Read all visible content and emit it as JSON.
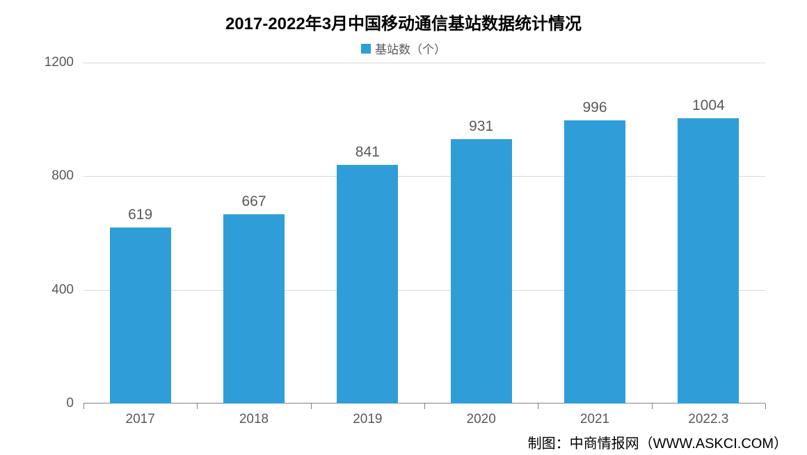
{
  "chart": {
    "type": "bar",
    "title": "2017-2022年3月中国移动通信基站数据统计情况",
    "title_fontsize": 24,
    "title_color": "#000000",
    "legend_label": "基站数（个）",
    "legend_color": "#2f9ed8",
    "legend_fontsize": 17,
    "categories": [
      "2017",
      "2018",
      "2019",
      "2020",
      "2021",
      "2022.3"
    ],
    "values": [
      619,
      667,
      841,
      931,
      996,
      1004
    ],
    "bar_color": "#2f9ed8",
    "bar_width_ratio": 0.54,
    "value_label_fontsize": 21,
    "value_label_color": "#595959",
    "ylim": [
      0,
      1200
    ],
    "ytick_step": 400,
    "y_tick_labels": [
      "0",
      "400",
      "800",
      "1200"
    ],
    "grid_color": "#d9d9d9",
    "axis_color": "#828282",
    "tick_label_fontsize": 19,
    "tick_label_color": "#595959",
    "background_color": "#ffffff",
    "attribution": "制图：中商情报网（WWW.ASKCI.COM）",
    "attribution_fontsize": 20,
    "attribution_color": "#000000"
  }
}
